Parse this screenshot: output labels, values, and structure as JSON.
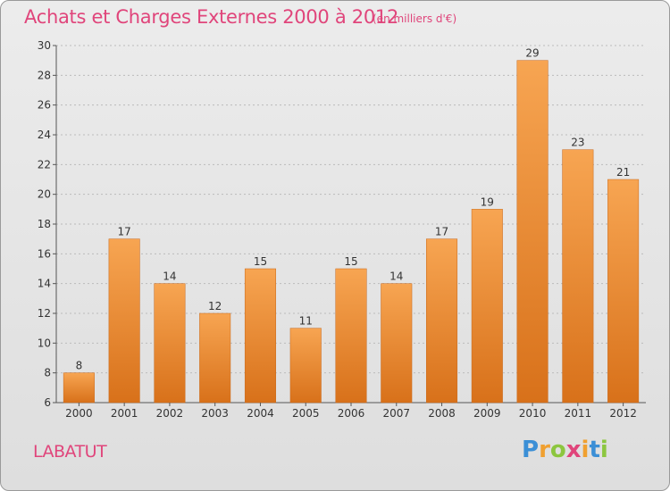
{
  "title": "Achats et Charges Externes 2000 à 2012",
  "unit_note": "(en milliers d'€)",
  "commune": "LABATUT",
  "brand": {
    "text": "Proxiti",
    "letters": [
      {
        "char": "P",
        "color": "#3b8fd6"
      },
      {
        "char": "r",
        "color": "#f0a030"
      },
      {
        "char": "o",
        "color": "#8cc63f"
      },
      {
        "char": "x",
        "color": "#e0457b"
      },
      {
        "char": "i",
        "color": "#f0a030"
      },
      {
        "char": "t",
        "color": "#3b8fd6"
      },
      {
        "char": "i",
        "color": "#8cc63f"
      }
    ]
  },
  "colors": {
    "title": "#e0457b",
    "bar_top": "#f7a552",
    "bar_bottom": "#d8711a",
    "grid": "#bbbbbb"
  },
  "chart_data": {
    "type": "bar",
    "title": "Achats et Charges Externes 2000 à 2012",
    "subtitle": "(en milliers d'€)",
    "categories": [
      "2000",
      "2001",
      "2002",
      "2003",
      "2004",
      "2005",
      "2006",
      "2007",
      "2008",
      "2009",
      "2010",
      "2011",
      "2012"
    ],
    "values": [
      8,
      17,
      14,
      12,
      15,
      11,
      15,
      14,
      17,
      19,
      29,
      23,
      21
    ],
    "ylim": [
      6,
      30
    ],
    "yticks": [
      6,
      8,
      10,
      12,
      14,
      16,
      18,
      20,
      22,
      24,
      26,
      28,
      30
    ],
    "grid": true,
    "xlabel": "",
    "ylabel": ""
  }
}
